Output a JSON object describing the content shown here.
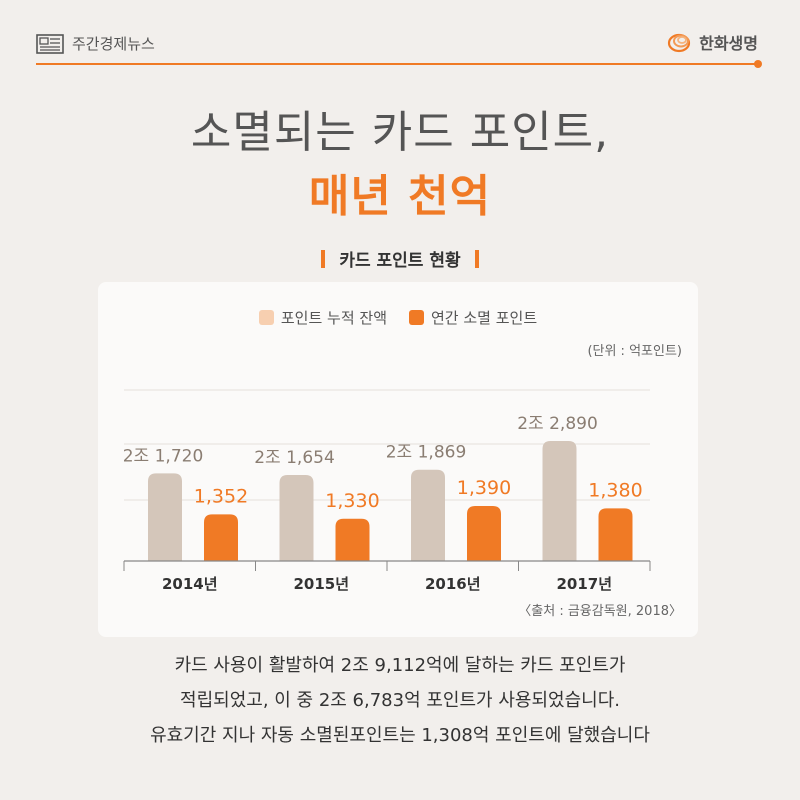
{
  "header": {
    "brand_left": "주간경제뉴스",
    "brand_right": "한화생명",
    "accent_color": "#f07a25"
  },
  "title": {
    "line1": "소멸되는 카드 포인트,",
    "line2": "매년 천억"
  },
  "chart_section_title": "카드 포인트 현황",
  "chart_data": {
    "type": "bar",
    "categories": [
      "2014년",
      "2015년",
      "2016년",
      "2017년"
    ],
    "series": [
      {
        "name": "포인트 누적 잔액",
        "values": [
          21720,
          21654,
          21869,
          22890
        ],
        "labels": [
          "2조 1,720",
          "2조 1,654",
          "2조 1,869",
          "2조 2,890"
        ],
        "color": "#d4c6ba",
        "label_color": "#8a7d72"
      },
      {
        "name": "연간 소멸 포인트",
        "values": [
          1352,
          1330,
          1390,
          1380
        ],
        "labels": [
          "1,352",
          "1,330",
          "1,390",
          "1,380"
        ],
        "color": "#f07a25",
        "label_color": "#f07a25"
      }
    ],
    "unit_note": "(단위 : 억포인트)",
    "source": "〈출처 : 금융감독원, 2018〉",
    "grid": true,
    "legend_position": "top-center"
  },
  "body_text": [
    "카드 사용이 활발하여 2조 9,112억에 달하는 카드 포인트가",
    "적립되었고, 이 중 2조 6,783억 포인트가 사용되었습니다.",
    "유효기간 지나 자동 소멸된포인트는 1,308억 포인트에 달했습니다"
  ]
}
